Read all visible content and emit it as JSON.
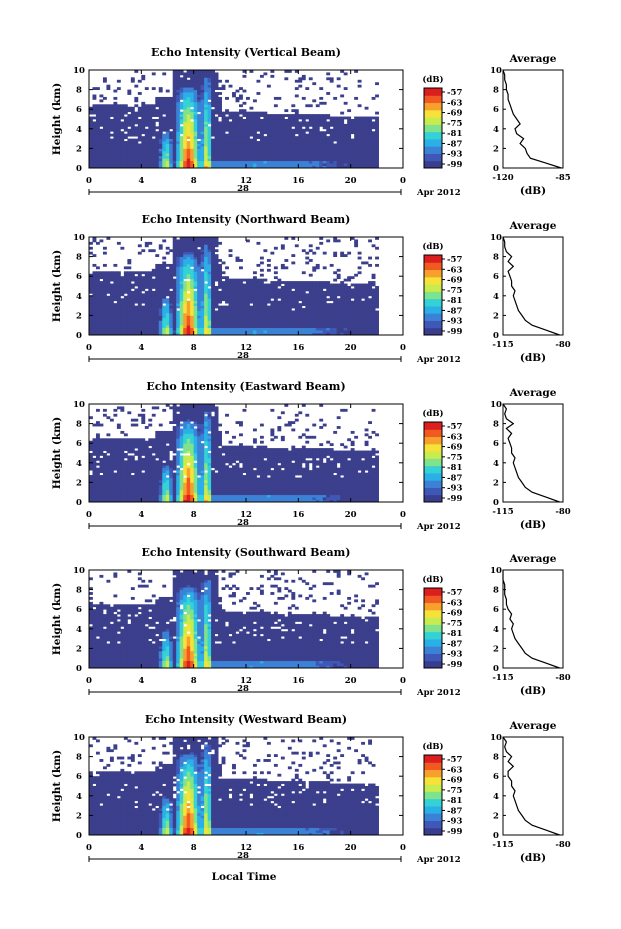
{
  "figure": {
    "xlabel_bottom": "Local Time",
    "date_label": "Apr 2012",
    "day_label": "28"
  },
  "colors": {
    "background_echo": "#3b3f8c",
    "colorbar": [
      "#3a3d8e",
      "#3f57b6",
      "#3b82d6",
      "#2ab0e6",
      "#34d2d6",
      "#7fe28c",
      "#c8ec4e",
      "#f7e23a",
      "#f8a02c",
      "#f05a22",
      "#dd1e1e"
    ]
  },
  "chart_data": [
    {
      "type": "heatmap",
      "title": "Echo Intensity (Vertical Beam)",
      "ylabel": "Height (km)",
      "ylim": [
        0,
        10
      ],
      "yticks": [
        "0",
        "2",
        "4",
        "6",
        "8",
        "10"
      ],
      "xlim": [
        0,
        24
      ],
      "xticks": [
        "0",
        "4",
        "8",
        "12",
        "16",
        "20",
        "0"
      ],
      "colorbar_label": "(dB)",
      "colorbar_ticks": [
        "-57",
        "-63",
        "-69",
        "-75",
        "-81",
        "-87",
        "-93",
        "-99"
      ],
      "profile": {
        "title": "Average",
        "xlabel": "(dB)",
        "xlim": [
          -120,
          -85
        ],
        "xticks": [
          "-120",
          "-85"
        ],
        "height_km": [
          0,
          0.5,
          1,
          1.5,
          2,
          2.5,
          3,
          3.5,
          4,
          4.5,
          5,
          5.5,
          6,
          6.5,
          7,
          7.5,
          8,
          8.5,
          9,
          9.5,
          10
        ],
        "values_db": [
          -86,
          -95,
          -104,
          -106,
          -107,
          -110,
          -108,
          -112,
          -113,
          -110,
          -112,
          -114,
          -115,
          -116,
          -117,
          -117,
          -118,
          -118,
          -119,
          -119,
          -120
        ]
      }
    },
    {
      "type": "heatmap",
      "title": "Echo Intensity (Northward Beam)",
      "ylabel": "Height (km)",
      "ylim": [
        0,
        10
      ],
      "yticks": [
        "0",
        "2",
        "4",
        "6",
        "8",
        "10"
      ],
      "xlim": [
        0,
        24
      ],
      "xticks": [
        "0",
        "4",
        "8",
        "12",
        "16",
        "20",
        "0"
      ],
      "colorbar_label": "(dB)",
      "colorbar_ticks": [
        "-57",
        "-63",
        "-69",
        "-75",
        "-81",
        "-87",
        "-93",
        "-99"
      ],
      "profile": {
        "title": "Average",
        "xlabel": "(dB)",
        "xlim": [
          -115,
          -80
        ],
        "xticks": [
          "-115",
          "-80"
        ],
        "height_km": [
          0,
          0.5,
          1,
          1.5,
          2,
          2.5,
          3,
          3.5,
          4,
          4.5,
          5,
          5.5,
          6,
          6.5,
          7,
          7.5,
          8,
          8.5,
          9,
          9.5,
          10
        ],
        "values_db": [
          -82,
          -90,
          -98,
          -102,
          -104,
          -106,
          -107,
          -108,
          -109,
          -108,
          -110,
          -110,
          -111,
          -112,
          -109,
          -112,
          -110,
          -113,
          -114,
          -114,
          -115
        ]
      }
    },
    {
      "type": "heatmap",
      "title": "Echo Intensity (Eastward Beam)",
      "ylabel": "Height (km)",
      "ylim": [
        0,
        10
      ],
      "yticks": [
        "0",
        "2",
        "4",
        "6",
        "8",
        "10"
      ],
      "xlim": [
        0,
        24
      ],
      "xticks": [
        "0",
        "4",
        "8",
        "12",
        "16",
        "20",
        "0"
      ],
      "colorbar_label": "(dB)",
      "colorbar_ticks": [
        "-57",
        "-63",
        "-69",
        "-75",
        "-81",
        "-87",
        "-93",
        "-99"
      ],
      "profile": {
        "title": "Average",
        "xlabel": "(dB)",
        "xlim": [
          -115,
          -80
        ],
        "xticks": [
          "-115",
          "-80"
        ],
        "height_km": [
          0,
          0.5,
          1,
          1.5,
          2,
          2.5,
          3,
          3.5,
          4,
          4.5,
          5,
          5.5,
          6,
          6.5,
          7,
          7.5,
          8,
          8.5,
          9,
          9.5,
          10
        ],
        "values_db": [
          -82,
          -90,
          -98,
          -102,
          -104,
          -106,
          -107,
          -108,
          -109,
          -108,
          -110,
          -110,
          -111,
          -112,
          -110,
          -113,
          -109,
          -113,
          -114,
          -113,
          -115
        ]
      }
    },
    {
      "type": "heatmap",
      "title": "Echo Intensity (Southward Beam)",
      "ylabel": "Height (km)",
      "ylim": [
        0,
        10
      ],
      "yticks": [
        "0",
        "2",
        "4",
        "6",
        "8",
        "10"
      ],
      "xlim": [
        0,
        24
      ],
      "xticks": [
        "0",
        "4",
        "8",
        "12",
        "16",
        "20",
        "0"
      ],
      "colorbar_label": "(dB)",
      "colorbar_ticks": [
        "-57",
        "-63",
        "-69",
        "-75",
        "-81",
        "-87",
        "-93",
        "-99"
      ],
      "profile": {
        "title": "Average",
        "xlabel": "(dB)",
        "xlim": [
          -115,
          -80
        ],
        "xticks": [
          "-115",
          "-80"
        ],
        "height_km": [
          0,
          0.5,
          1,
          1.5,
          2,
          2.5,
          3,
          3.5,
          4,
          4.5,
          5,
          5.5,
          6,
          6.5,
          7,
          7.5,
          8,
          8.5,
          9,
          9.5,
          10
        ],
        "values_db": [
          -82,
          -90,
          -98,
          -102,
          -104,
          -106,
          -108,
          -109,
          -110,
          -109,
          -111,
          -110,
          -112,
          -113,
          -113,
          -114,
          -114,
          -114,
          -115,
          -115,
          -115
        ]
      }
    },
    {
      "type": "heatmap",
      "title": "Echo Intensity (Westward Beam)",
      "ylabel": "Height (km)",
      "ylim": [
        0,
        10
      ],
      "yticks": [
        "0",
        "2",
        "4",
        "6",
        "8",
        "10"
      ],
      "xlim": [
        0,
        24
      ],
      "xticks": [
        "0",
        "4",
        "8",
        "12",
        "16",
        "20",
        "0"
      ],
      "colorbar_label": "(dB)",
      "colorbar_ticks": [
        "-57",
        "-63",
        "-69",
        "-75",
        "-81",
        "-87",
        "-93",
        "-99"
      ],
      "profile": {
        "title": "Average",
        "xlabel": "(dB)",
        "xlim": [
          -115,
          -80
        ],
        "xticks": [
          "-115",
          "-80"
        ],
        "height_km": [
          0,
          0.5,
          1,
          1.5,
          2,
          2.5,
          3,
          3.5,
          4,
          4.5,
          5,
          5.5,
          6,
          6.5,
          7,
          7.5,
          8,
          8.5,
          9,
          9.5,
          10
        ],
        "values_db": [
          -82,
          -90,
          -98,
          -102,
          -104,
          -106,
          -107,
          -108,
          -109,
          -108,
          -110,
          -110,
          -112,
          -112,
          -109,
          -112,
          -110,
          -113,
          -114,
          -113,
          -115
        ]
      }
    }
  ]
}
